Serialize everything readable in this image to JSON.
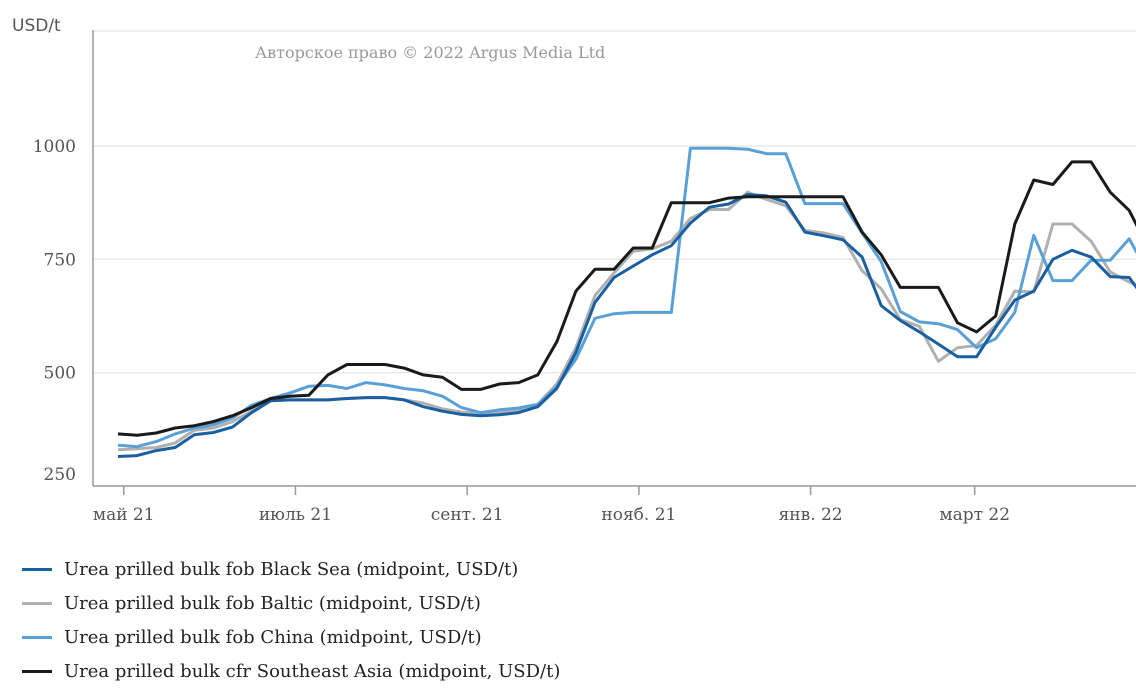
{
  "chart_data": {
    "type": "line",
    "title": "",
    "ylabel": "USD/t",
    "xlabel": "",
    "copyright": "Авторское право © 2022 Argus Media Ltd",
    "ylim": [
      250,
      1250
    ],
    "y_ticks": [
      250,
      500,
      750,
      1000
    ],
    "grid": true,
    "legend_position": "bottom",
    "x_ticks": [
      {
        "label": "май 21",
        "x": 0.3
      },
      {
        "label": "июль 21",
        "x": 9.3
      },
      {
        "label": "сент. 21",
        "x": 18.3
      },
      {
        "label": "нояб. 21",
        "x": 27.3
      },
      {
        "label": "янв. 22",
        "x": 36.3
      },
      {
        "label": "март 22",
        "x": 44.9
      }
    ],
    "x_range": [
      0,
      53
    ],
    "series": [
      {
        "name": "Urea prilled bulk fob Black Sea (midpoint, USD/t)",
        "color": "#1a5fa0",
        "values": [
          315,
          317,
          328,
          335,
          363,
          368,
          380,
          412,
          438,
          440,
          440,
          440,
          443,
          445,
          445,
          440,
          425,
          415,
          408,
          405,
          407,
          412,
          425,
          465,
          545,
          655,
          710,
          735,
          760,
          780,
          830,
          865,
          872,
          893,
          890,
          876,
          810,
          802,
          793,
          755,
          648,
          615,
          590,
          563,
          535,
          535,
          600,
          660,
          680,
          750,
          770,
          755,
          712,
          710,
          653
        ]
      },
      {
        "name": "Urea prilled bulk fob Baltic (midpoint, USD/t)",
        "color": "#b0b0b0",
        "values": [
          330,
          332,
          335,
          345,
          373,
          378,
          392,
          415,
          438,
          440,
          440,
          440,
          443,
          445,
          445,
          440,
          433,
          420,
          413,
          410,
          412,
          418,
          430,
          475,
          555,
          670,
          720,
          768,
          773,
          790,
          840,
          860,
          860,
          898,
          882,
          868,
          814,
          808,
          798,
          725,
          685,
          617,
          602,
          525,
          555,
          560,
          605,
          680,
          678,
          828,
          828,
          790,
          722,
          700,
          680
        ]
      },
      {
        "name": "Urea prilled bulk fob China (midpoint, USD/t)",
        "color": "#5aa0d8",
        "values": [
          340,
          337,
          348,
          365,
          378,
          385,
          400,
          428,
          443,
          455,
          470,
          472,
          465,
          478,
          473,
          465,
          460,
          448,
          423,
          412,
          418,
          422,
          430,
          470,
          530,
          620,
          630,
          633,
          633,
          633,
          995,
          995,
          995,
          993,
          983,
          983,
          873,
          873,
          873,
          808,
          745,
          635,
          612,
          608,
          595,
          555,
          575,
          633,
          803,
          703,
          703,
          748,
          748,
          795,
          720
        ]
      },
      {
        "name": "Urea prilled bulk cfr Southeast Asia (midpoint, USD/t)",
        "color": "#1a1a1a",
        "values": [
          365,
          362,
          367,
          378,
          383,
          392,
          405,
          423,
          443,
          448,
          450,
          495,
          518,
          518,
          518,
          510,
          495,
          490,
          463,
          463,
          475,
          478,
          495,
          568,
          680,
          728,
          728,
          775,
          775,
          875,
          875,
          875,
          885,
          888,
          888,
          888,
          888,
          888,
          888,
          810,
          760,
          688,
          688,
          688,
          610,
          590,
          625,
          828,
          925,
          915,
          965,
          965,
          898,
          858,
          775
        ]
      }
    ]
  }
}
